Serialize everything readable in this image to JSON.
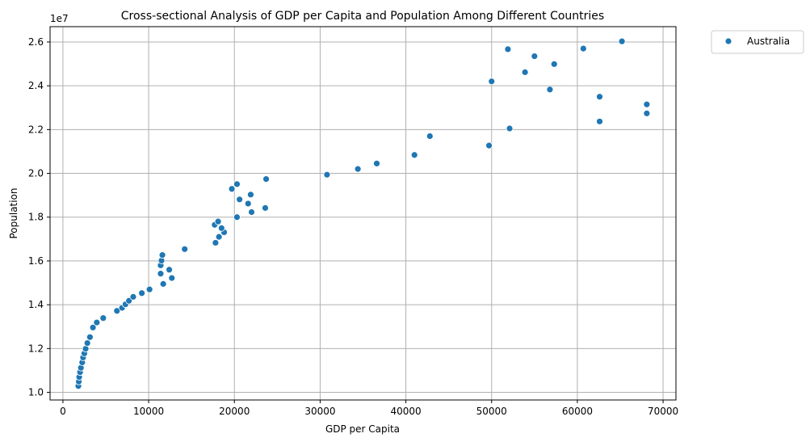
{
  "chart_data": {
    "type": "scatter",
    "title": "Cross-sectional Analysis of GDP per Capita and Population Among Different Countries",
    "xlabel": "GDP per Capita",
    "ylabel": "Population",
    "y_offset_label": "1e7",
    "xlim": [
      -1500,
      71500
    ],
    "ylim": [
      9650000,
      26700000
    ],
    "xticks": [
      0,
      10000,
      20000,
      30000,
      40000,
      50000,
      60000,
      70000
    ],
    "xtick_labels": [
      "0",
      "10000",
      "20000",
      "30000",
      "40000",
      "50000",
      "60000",
      "70000"
    ],
    "yticks": [
      10000000,
      12000000,
      14000000,
      16000000,
      18000000,
      20000000,
      22000000,
      24000000,
      26000000
    ],
    "ytick_labels": [
      "1.0",
      "1.2",
      "1.4",
      "1.6",
      "1.8",
      "2.0",
      "2.2",
      "2.4",
      "2.6"
    ],
    "grid": true,
    "legend_position": "outside top-right",
    "marker_color": "#1f77b4",
    "series": [
      {
        "name": "Australia",
        "points": [
          [
            1800,
            10290000
          ],
          [
            1850,
            10490000
          ],
          [
            1900,
            10700000
          ],
          [
            2000,
            10920000
          ],
          [
            2100,
            11120000
          ],
          [
            2250,
            11370000
          ],
          [
            2350,
            11590000
          ],
          [
            2500,
            11780000
          ],
          [
            2650,
            11990000
          ],
          [
            2850,
            12250000
          ],
          [
            3150,
            12520000
          ],
          [
            3500,
            12960000
          ],
          [
            3950,
            13190000
          ],
          [
            4700,
            13390000
          ],
          [
            6300,
            13720000
          ],
          [
            6900,
            13860000
          ],
          [
            7300,
            14020000
          ],
          [
            7700,
            14180000
          ],
          [
            8200,
            14360000
          ],
          [
            9200,
            14530000
          ],
          [
            10100,
            14700000
          ],
          [
            11700,
            14950000
          ],
          [
            12700,
            15220000
          ],
          [
            11400,
            15420000
          ],
          [
            12400,
            15600000
          ],
          [
            11400,
            15800000
          ],
          [
            11500,
            16020000
          ],
          [
            11600,
            16270000
          ],
          [
            14200,
            16540000
          ],
          [
            17800,
            16830000
          ],
          [
            18200,
            17100000
          ],
          [
            18800,
            17310000
          ],
          [
            18500,
            17500000
          ],
          [
            17700,
            17650000
          ],
          [
            18100,
            17800000
          ],
          [
            20300,
            18000000
          ],
          [
            22000,
            18230000
          ],
          [
            23600,
            18420000
          ],
          [
            21600,
            18620000
          ],
          [
            20600,
            18810000
          ],
          [
            21900,
            19030000
          ],
          [
            19700,
            19290000
          ],
          [
            20300,
            19510000
          ],
          [
            23700,
            19740000
          ],
          [
            30800,
            19940000
          ],
          [
            34400,
            20200000
          ],
          [
            36600,
            20450000
          ],
          [
            41000,
            20840000
          ],
          [
            42800,
            21700000
          ],
          [
            49700,
            21270000
          ],
          [
            52100,
            22050000
          ],
          [
            50000,
            24200000
          ],
          [
            51900,
            25670000
          ],
          [
            53900,
            24620000
          ],
          [
            55000,
            25350000
          ],
          [
            56800,
            23830000
          ],
          [
            57300,
            24990000
          ],
          [
            60700,
            25700000
          ],
          [
            62600,
            23500000
          ],
          [
            62600,
            22370000
          ],
          [
            65200,
            26030000
          ],
          [
            68100,
            23150000
          ],
          [
            68100,
            22740000
          ]
        ]
      }
    ]
  }
}
